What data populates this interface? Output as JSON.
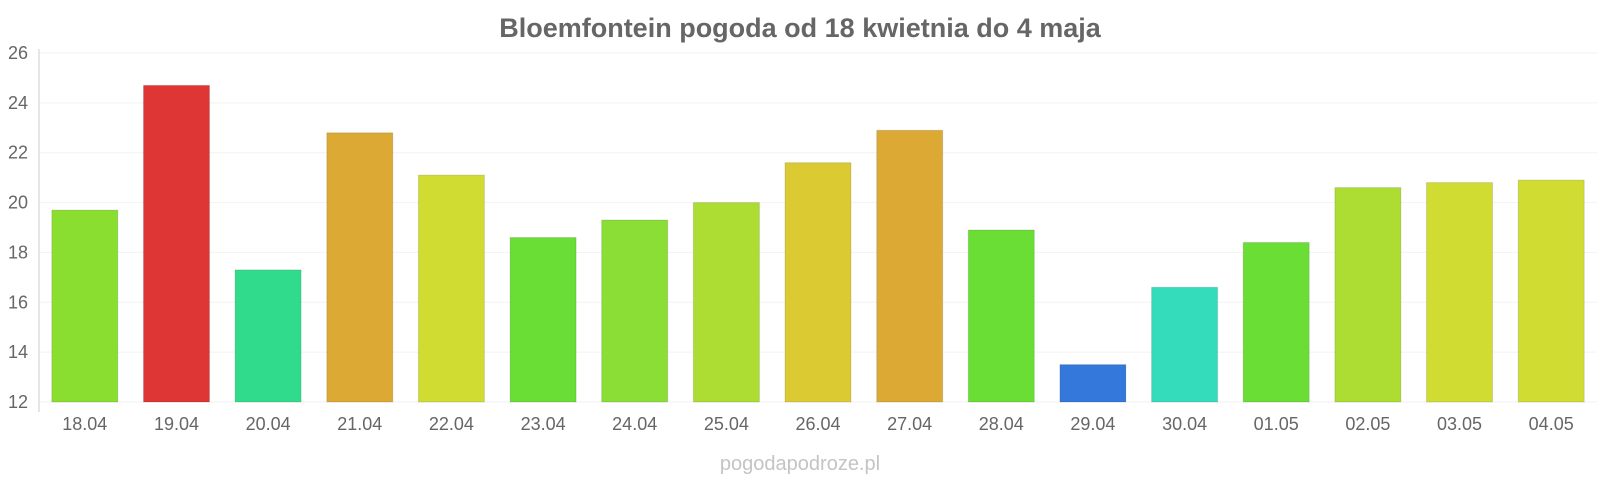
{
  "chart_data": {
    "type": "bar",
    "title": "Bloemfontein pogoda od 18 kwietnia do 4 maja",
    "xlabel": "",
    "ylabel": "",
    "ylim": [
      12,
      26
    ],
    "yticks": [
      "12",
      "14",
      "16",
      "18",
      "20",
      "22",
      "24",
      "26"
    ],
    "grid": true,
    "legend": "none",
    "categories": [
      "18.04",
      "19.04",
      "20.04",
      "21.04",
      "22.04",
      "23.04",
      "24.04",
      "25.04",
      "26.04",
      "27.04",
      "28.04",
      "29.04",
      "30.04",
      "01.05",
      "02.05",
      "03.05",
      "04.05"
    ],
    "values": [
      19.7,
      24.7,
      17.3,
      22.8,
      21.1,
      18.6,
      19.3,
      20.0,
      21.6,
      22.9,
      18.9,
      13.5,
      16.6,
      18.4,
      20.6,
      20.8,
      20.9
    ],
    "colors": [
      "#8ade30",
      "#de3535",
      "#30dc8b",
      "#dcaa34",
      "#d1dc33",
      "#6ade35",
      "#8ade35",
      "#addc33",
      "#dcca33",
      "#dcaa34",
      "#6ade35",
      "#3478dc",
      "#35dcbb",
      "#6ade35",
      "#addc33",
      "#d1dc33",
      "#d1dc33"
    ]
  },
  "watermark": "pogodapodroze.pl"
}
